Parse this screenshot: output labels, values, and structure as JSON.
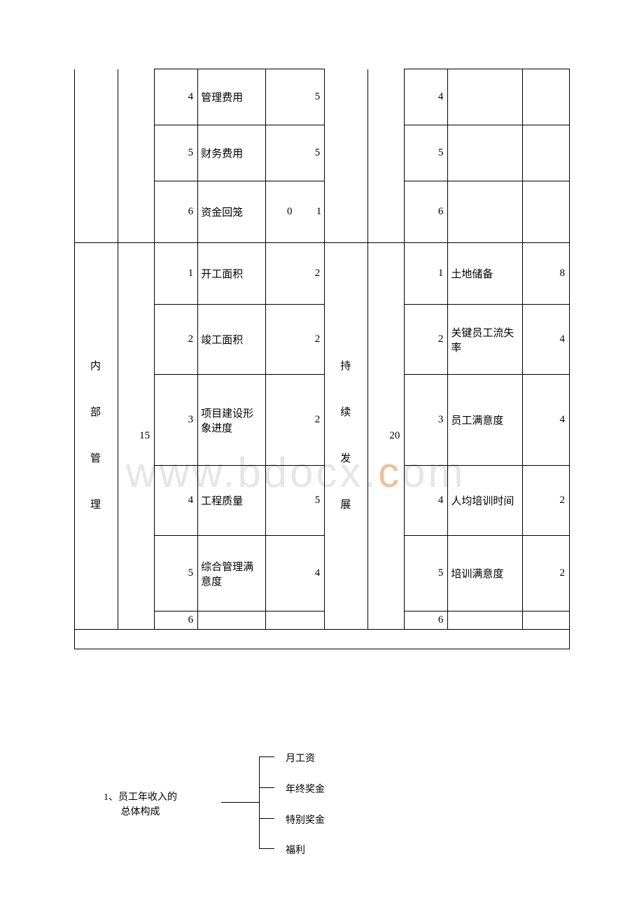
{
  "table": {
    "top_section": {
      "rows": [
        {
          "left_idx": "4",
          "left_label": "管理费用",
          "left_val": "5",
          "right_idx": "4",
          "right_label": "",
          "right_val": ""
        },
        {
          "left_idx": "5",
          "left_label": "财务费用",
          "left_val": "5",
          "right_idx": "5",
          "right_label": "",
          "right_val": ""
        },
        {
          "left_idx": "6",
          "left_label": "资金回笼",
          "left_val_a": "0",
          "left_val_b": "1",
          "right_idx": "6",
          "right_label": "",
          "right_val": ""
        }
      ]
    },
    "bottom_section": {
      "left_group_label": "内 部 管 理",
      "left_group_val": "15",
      "right_group_label": "持 续 发 展",
      "right_group_val": "20",
      "rows": [
        {
          "left_idx": "1",
          "left_label": "开工面积",
          "left_val": "2",
          "right_idx": "1",
          "right_label": "土地储备",
          "right_val": "8"
        },
        {
          "left_idx": "2",
          "left_label": "竣工面积",
          "left_val": "2",
          "right_idx": "2",
          "right_label": "关键员工流失率",
          "right_val": "4"
        },
        {
          "left_idx": "3",
          "left_label": "项目建设形象进度",
          "left_val": "2",
          "right_idx": "3",
          "right_label": "员工满意度",
          "right_val": "4"
        },
        {
          "left_idx": "4",
          "left_label": "工程质量",
          "left_val": "5",
          "right_idx": "4",
          "right_label": "人均培训时间",
          "right_val": "2"
        },
        {
          "left_idx": "5",
          "left_label": "综合管理满意度",
          "left_val": "4",
          "right_idx": "5",
          "right_label": "培训满意度",
          "right_val": "2"
        },
        {
          "left_idx": "6",
          "left_label": "",
          "left_val": "",
          "right_idx": "6",
          "right_label": "",
          "right_val": ""
        }
      ]
    }
  },
  "watermark": {
    "prefix": "www.bdocx.",
    "c": "c",
    "suffix": "om"
  },
  "bracket": {
    "left_line1": "1、员工年收入的",
    "left_line2": "总体构成",
    "items": [
      "月工资",
      "年终奖金",
      "特别奖金",
      "福利"
    ]
  },
  "col_widths": {
    "c1": 50,
    "c2": 42,
    "c3": 50,
    "c4": 78,
    "c5": 68,
    "c6": 50,
    "c7": 42,
    "c8": 50,
    "c9": 86,
    "c10": 54
  },
  "row_heights": {
    "top_normal": 80,
    "bottom_r12": 88,
    "bottom_r3": 130,
    "bottom_r4": 100,
    "bottom_r5": 108,
    "bottom_r6": 24,
    "spacer": 28
  }
}
